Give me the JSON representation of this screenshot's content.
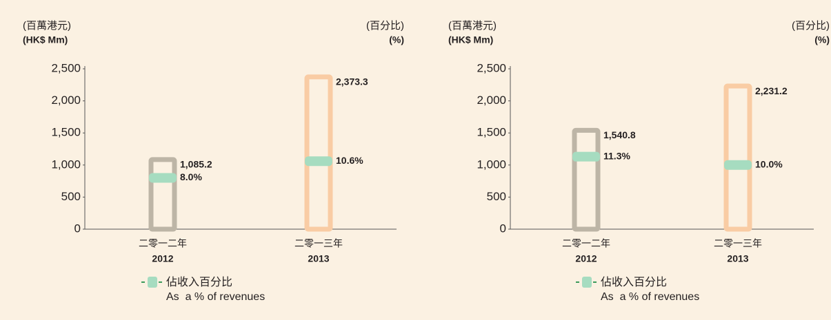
{
  "chart_data": [
    {
      "type": "bar",
      "y_label": [
        "(百萬港元)",
        "(HK$ Mm)"
      ],
      "y2_label": [
        "(百分比)",
        "(%)"
      ],
      "categories": [
        [
          "二零一二年",
          "2012"
        ],
        [
          "二零一三年",
          "2013"
        ]
      ],
      "ylim": [
        0,
        2500
      ],
      "yticks": [
        0,
        500,
        {
          "value": 1000,
          "label": "1,000"
        },
        {
          "value": 1500,
          "label": "1,500"
        },
        {
          "value": 2000,
          "label": "2,000"
        },
        {
          "value": 2500,
          "label": "2,500"
        }
      ],
      "y2lim": [
        0,
        25
      ],
      "series": [
        {
          "colors": [
            "#bdb5a6",
            "#f9cca4"
          ],
          "values": [
            1085.2,
            2373.3
          ],
          "value_labels": [
            "1,085.2",
            "2,373.3"
          ]
        },
        {
          "name": [
            "佔收入百分比",
            "As  a % of revenues"
          ],
          "color": "#a6dcc0",
          "axis": "y2",
          "values": [
            8.0,
            10.6
          ],
          "value_labels": [
            "8.0%",
            "10.6%"
          ]
        }
      ]
    },
    {
      "type": "bar",
      "y_label": [
        "(百萬港元)",
        "(HK$ Mm)"
      ],
      "y2_label": [
        "(百分比)",
        "(%)"
      ],
      "categories": [
        [
          "二零一二年",
          "2012"
        ],
        [
          "二零一三年",
          "2013"
        ]
      ],
      "ylim": [
        0,
        2500
      ],
      "yticks": [
        0,
        500,
        {
          "value": 1000,
          "label": "1,000"
        },
        {
          "value": 1500,
          "label": "1,500"
        },
        {
          "value": 2000,
          "label": "2,000"
        },
        {
          "value": 2500,
          "label": "2,500"
        }
      ],
      "y2lim": [
        0,
        25
      ],
      "series": [
        {
          "colors": [
            "#bdb5a6",
            "#f9cca4"
          ],
          "values": [
            1540.8,
            2231.2
          ],
          "value_labels": [
            "1,540.8",
            "2,231.2"
          ]
        },
        {
          "name": [
            "佔收入百分比",
            "As  a % of revenues"
          ],
          "color": "#a6dcc0",
          "axis": "y2",
          "values": [
            11.3,
            10.0
          ],
          "value_labels": [
            "11.3%",
            "10.0%"
          ]
        }
      ]
    }
  ]
}
